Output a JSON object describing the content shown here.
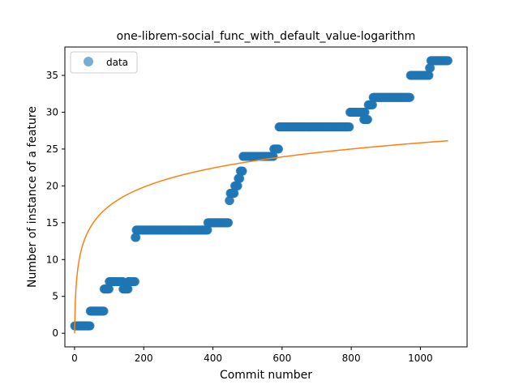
{
  "chart_data": {
    "type": "scatter",
    "title": "one-librem-social_func_with_default_value-logarithm",
    "xlabel": "Commit number",
    "ylabel": "Number of instance of a feature",
    "xlim": [
      -28,
      1135
    ],
    "ylim": [
      -1.85,
      38.85
    ],
    "xticks": [
      0,
      200,
      400,
      600,
      800,
      1000
    ],
    "yticks": [
      0,
      5,
      10,
      15,
      20,
      25,
      30,
      35
    ],
    "grid": false,
    "legend": {
      "placement": "top-left",
      "entries": [
        "data"
      ]
    },
    "colors": {
      "data": "#1f77b4",
      "fit": "#ff7f0e"
    },
    "series": [
      {
        "name": "data",
        "type": "scatter",
        "segments": [
          {
            "x_start": 0,
            "x_end": 45,
            "y": 1
          },
          {
            "x_start": 45,
            "x_end": 85,
            "y": 3
          },
          {
            "x_start": 85,
            "x_end": 100,
            "y": 6
          },
          {
            "x_start": 100,
            "x_end": 140,
            "y": 7
          },
          {
            "x_start": 140,
            "x_end": 155,
            "y": 6
          },
          {
            "x_start": 155,
            "x_end": 175,
            "y": 7
          },
          {
            "x_start": 175,
            "x_end": 178,
            "y": 13
          },
          {
            "x_start": 178,
            "x_end": 385,
            "y": 14
          },
          {
            "x_start": 385,
            "x_end": 445,
            "y": 15
          },
          {
            "x_start": 447,
            "x_end": 449,
            "y": 18
          },
          {
            "x_start": 450,
            "x_end": 462,
            "y": 19
          },
          {
            "x_start": 463,
            "x_end": 472,
            "y": 20
          },
          {
            "x_start": 473,
            "x_end": 478,
            "y": 21
          },
          {
            "x_start": 479,
            "x_end": 486,
            "y": 22
          },
          {
            "x_start": 487,
            "x_end": 575,
            "y": 24
          },
          {
            "x_start": 576,
            "x_end": 590,
            "y": 25
          },
          {
            "x_start": 591,
            "x_end": 795,
            "y": 28
          },
          {
            "x_start": 796,
            "x_end": 840,
            "y": 30
          },
          {
            "x_start": 836,
            "x_end": 848,
            "y": 29
          },
          {
            "x_start": 849,
            "x_end": 862,
            "y": 31
          },
          {
            "x_start": 863,
            "x_end": 970,
            "y": 32
          },
          {
            "x_start": 971,
            "x_end": 1025,
            "y": 35
          },
          {
            "x_start": 1026,
            "x_end": 1029,
            "y": 36
          },
          {
            "x_start": 1030,
            "x_end": 1080,
            "y": 37
          }
        ]
      },
      {
        "name": "",
        "type": "line",
        "model": "logarithmic",
        "coefficients": {
          "a": 3.74,
          "b": 0.0
        },
        "x_range": [
          0,
          1080
        ]
      }
    ]
  }
}
